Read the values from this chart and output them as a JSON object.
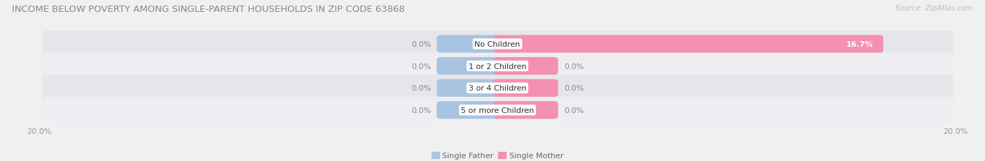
{
  "title": "INCOME BELOW POVERTY AMONG SINGLE-PARENT HOUSEHOLDS IN ZIP CODE 63868",
  "source": "Source: ZipAtlas.com",
  "categories": [
    "No Children",
    "1 or 2 Children",
    "3 or 4 Children",
    "5 or more Children"
  ],
  "single_father": [
    0.0,
    0.0,
    0.0,
    0.0
  ],
  "single_mother": [
    16.7,
    0.0,
    0.0,
    0.0
  ],
  "xlim": [
    -20.0,
    20.0
  ],
  "father_color": "#a8c4e0",
  "mother_color": "#f490b0",
  "father_label": "Single Father",
  "mother_label": "Single Mother",
  "bg_color": "#f0f0f0",
  "row_bg_even": "#e8e8ec",
  "row_bg_odd": "#f0f0f4",
  "title_fontsize": 9.5,
  "source_fontsize": 7.5,
  "label_fontsize": 8,
  "tick_fontsize": 8,
  "category_fontsize": 8,
  "bar_height": 0.5,
  "min_bar_width": 2.5,
  "label_inside_threshold": 3.0
}
